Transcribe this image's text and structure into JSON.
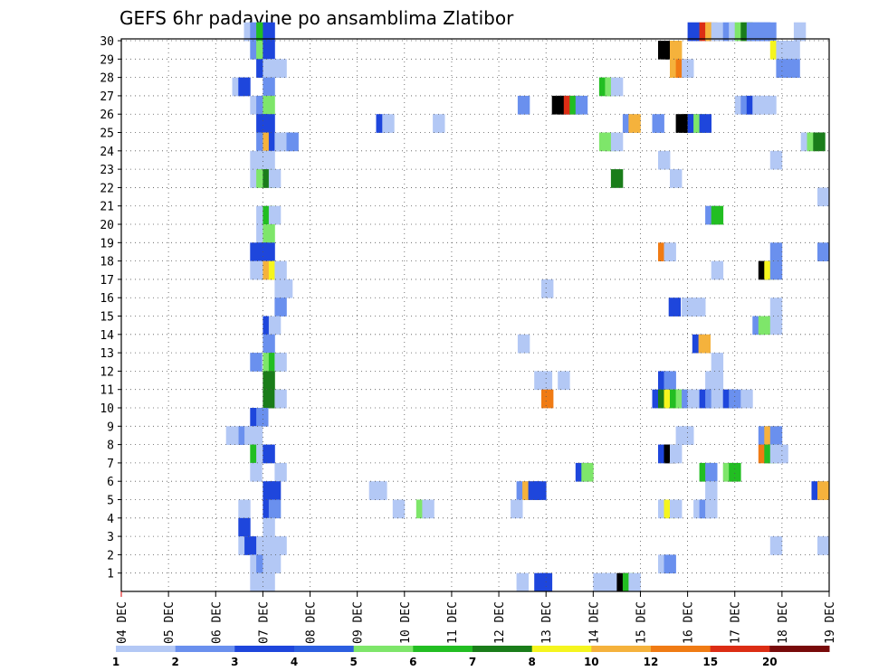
{
  "chart_data": {
    "type": "heatmap",
    "title": "GEFS 6hr padavine po ansamblima Zlatibor",
    "xlabel": "",
    "ylabel": "",
    "x_ticks": [
      "04 DEC",
      "05 DEC",
      "06 DEC",
      "07 DEC",
      "08 DEC",
      "09 DEC",
      "10 DEC",
      "11 DEC",
      "12 DEC",
      "13 DEC",
      "14 DEC",
      "15 DEC",
      "16 DEC",
      "17 DEC",
      "18 DEC",
      "19 DEC"
    ],
    "x_range_days": [
      4,
      19
    ],
    "y_ticks": [
      1,
      2,
      3,
      4,
      5,
      6,
      7,
      8,
      9,
      10,
      11,
      12,
      13,
      14,
      15,
      16,
      17,
      18,
      19,
      20,
      21,
      22,
      23,
      24,
      25,
      26,
      27,
      28,
      29,
      30
    ],
    "y_range": [
      0,
      30
    ],
    "grid": true,
    "colorbar": {
      "labels": [
        "1",
        "2",
        "3",
        "4",
        "5",
        "6",
        "7",
        "8",
        "10",
        "12",
        "15",
        "20"
      ],
      "colors": [
        "#b3c8f5",
        "#6a90ee",
        "#1e46dc",
        "#2c5ee0",
        "#7ee66a",
        "#22be22",
        "#1a7d1a",
        "#f5f51e",
        "#f5b23c",
        "#f07b14",
        "#dc2d14",
        "#780a0a"
      ]
    },
    "cells": [
      [
        30,
        6.6,
        1
      ],
      [
        30,
        6.73,
        2
      ],
      [
        30,
        6.86,
        6
      ],
      [
        30,
        7.0,
        3
      ],
      [
        30,
        16.0,
        3
      ],
      [
        30,
        16.25,
        11
      ],
      [
        30,
        16.375,
        9
      ],
      [
        30,
        16.5,
        1
      ],
      [
        30,
        16.75,
        2
      ],
      [
        30,
        16.875,
        1
      ],
      [
        30,
        17.0,
        5
      ],
      [
        30,
        17.125,
        7
      ],
      [
        30,
        17.25,
        2
      ],
      [
        30,
        17.375,
        2
      ],
      [
        30,
        17.5,
        2
      ],
      [
        30,
        17.625,
        2
      ],
      [
        30,
        18.25,
        1
      ],
      [
        29,
        6.73,
        2
      ],
      [
        29,
        6.86,
        5
      ],
      [
        29,
        7.0,
        3
      ],
      [
        29,
        15.375,
        14
      ],
      [
        29,
        15.5,
        15
      ],
      [
        29,
        15.625,
        9
      ],
      [
        29,
        17.75,
        8
      ],
      [
        29,
        17.875,
        1
      ],
      [
        29,
        18.0,
        1
      ],
      [
        29,
        18.125,
        1
      ],
      [
        28,
        6.86,
        3
      ],
      [
        28,
        7.0,
        1
      ],
      [
        28,
        7.125,
        1
      ],
      [
        28,
        7.25,
        1
      ],
      [
        28,
        15.625,
        9
      ],
      [
        28,
        15.75,
        10
      ],
      [
        28,
        15.875,
        1
      ],
      [
        28,
        17.875,
        2
      ],
      [
        28,
        18.0,
        2
      ],
      [
        28,
        18.125,
        2
      ],
      [
        27,
        6.35,
        1
      ],
      [
        27,
        6.48,
        3
      ],
      [
        27,
        7.0,
        2
      ],
      [
        27,
        14.125,
        6
      ],
      [
        27,
        14.25,
        5
      ],
      [
        27,
        14.375,
        1
      ],
      [
        26,
        6.73,
        1
      ],
      [
        26,
        6.86,
        2
      ],
      [
        26,
        7.0,
        5
      ],
      [
        26,
        12.4,
        2
      ],
      [
        26,
        13.125,
        14
      ],
      [
        26,
        13.25,
        13
      ],
      [
        26,
        13.375,
        11
      ],
      [
        26,
        13.5,
        6
      ],
      [
        26,
        13.625,
        2
      ],
      [
        26,
        17.0,
        1
      ],
      [
        26,
        17.125,
        2
      ],
      [
        26,
        17.25,
        3
      ],
      [
        26,
        17.375,
        1
      ],
      [
        26,
        17.5,
        1
      ],
      [
        26,
        17.625,
        1
      ],
      [
        25,
        6.86,
        3
      ],
      [
        25,
        7.0,
        3
      ],
      [
        25,
        9.4,
        3
      ],
      [
        25,
        9.53,
        1
      ],
      [
        25,
        10.6,
        1
      ],
      [
        25,
        14.625,
        2
      ],
      [
        25,
        14.75,
        9
      ],
      [
        25,
        15.25,
        2
      ],
      [
        25,
        15.75,
        13
      ],
      [
        25,
        15.875,
        14
      ],
      [
        25,
        16.0,
        3
      ],
      [
        25,
        16.125,
        5
      ],
      [
        25,
        16.25,
        3
      ],
      [
        24,
        6.86,
        2
      ],
      [
        24,
        7.0,
        9
      ],
      [
        24,
        7.125,
        3
      ],
      [
        24,
        7.25,
        1
      ],
      [
        24,
        7.375,
        1
      ],
      [
        24,
        7.5,
        2
      ],
      [
        24,
        14.125,
        5
      ],
      [
        24,
        14.25,
        5
      ],
      [
        24,
        14.375,
        1
      ],
      [
        24,
        18.4,
        1
      ],
      [
        24,
        18.53,
        5
      ],
      [
        24,
        18.66,
        7
      ],
      [
        23,
        6.73,
        1
      ],
      [
        23,
        6.86,
        1
      ],
      [
        23,
        7.0,
        1
      ],
      [
        23,
        15.375,
        1
      ],
      [
        23,
        17.75,
        1
      ],
      [
        22,
        6.73,
        1
      ],
      [
        22,
        6.86,
        5
      ],
      [
        22,
        7.0,
        7
      ],
      [
        22,
        7.125,
        1
      ],
      [
        22,
        14.375,
        7
      ],
      [
        22,
        15.625,
        1
      ],
      [
        21,
        18.75,
        1
      ],
      [
        20,
        6.86,
        1
      ],
      [
        20,
        7.0,
        6
      ],
      [
        20,
        7.125,
        1
      ],
      [
        20,
        16.375,
        2
      ],
      [
        20,
        16.5,
        6
      ],
      [
        19,
        6.86,
        1
      ],
      [
        19,
        7.0,
        5
      ],
      [
        18,
        6.73,
        3
      ],
      [
        18,
        6.86,
        3
      ],
      [
        18,
        7.0,
        3
      ],
      [
        18,
        15.375,
        10
      ],
      [
        18,
        15.5,
        1
      ],
      [
        18,
        17.75,
        2
      ],
      [
        18,
        18.75,
        2
      ],
      [
        17,
        6.73,
        1
      ],
      [
        17,
        6.86,
        1
      ],
      [
        17,
        7.0,
        9
      ],
      [
        17,
        7.125,
        8
      ],
      [
        17,
        7.25,
        1
      ],
      [
        17,
        16.5,
        1
      ],
      [
        17,
        17.5,
        14
      ],
      [
        17,
        17.625,
        8
      ],
      [
        17,
        17.75,
        2
      ],
      [
        16,
        7.25,
        1
      ],
      [
        16,
        7.375,
        1
      ],
      [
        16,
        12.9,
        1
      ],
      [
        15,
        7.25,
        2
      ],
      [
        15,
        15.6,
        3
      ],
      [
        15,
        15.875,
        1
      ],
      [
        15,
        16.0,
        1
      ],
      [
        15,
        16.125,
        1
      ],
      [
        15,
        17.75,
        1
      ],
      [
        14,
        7.0,
        3
      ],
      [
        14,
        7.125,
        1
      ],
      [
        14,
        17.375,
        2
      ],
      [
        14,
        17.5,
        5
      ],
      [
        14,
        17.75,
        1
      ],
      [
        13,
        7.0,
        2
      ],
      [
        13,
        12.4,
        1
      ],
      [
        13,
        16.1,
        3
      ],
      [
        13,
        16.23,
        9
      ],
      [
        12,
        6.73,
        2
      ],
      [
        12,
        7.0,
        5
      ],
      [
        12,
        7.125,
        6
      ],
      [
        12,
        7.25,
        1
      ],
      [
        12,
        16.5,
        1
      ],
      [
        11,
        7.0,
        7
      ],
      [
        11,
        12.75,
        1
      ],
      [
        11,
        12.875,
        1
      ],
      [
        11,
        13.25,
        1
      ],
      [
        11,
        15.375,
        3
      ],
      [
        11,
        15.5,
        2
      ],
      [
        11,
        16.375,
        1
      ],
      [
        11,
        16.5,
        1
      ],
      [
        10,
        7.0,
        7
      ],
      [
        10,
        7.125,
        7
      ],
      [
        10,
        7.25,
        1
      ],
      [
        10,
        12.9,
        10
      ],
      [
        10,
        15.25,
        3
      ],
      [
        10,
        15.375,
        7
      ],
      [
        10,
        15.5,
        8
      ],
      [
        10,
        15.625,
        6
      ],
      [
        10,
        15.75,
        5
      ],
      [
        10,
        15.875,
        2
      ],
      [
        10,
        16.0,
        1
      ],
      [
        10,
        16.125,
        1
      ],
      [
        10,
        16.25,
        3
      ],
      [
        10,
        16.375,
        2
      ],
      [
        10,
        16.5,
        1
      ],
      [
        10,
        16.625,
        1
      ],
      [
        10,
        16.75,
        3
      ],
      [
        10,
        16.875,
        2
      ],
      [
        10,
        17.125,
        1
      ],
      [
        9,
        6.73,
        3
      ],
      [
        9,
        6.86,
        2
      ],
      [
        8,
        6.22,
        1
      ],
      [
        8,
        6.48,
        2
      ],
      [
        8,
        6.61,
        1
      ],
      [
        8,
        6.74,
        1
      ],
      [
        8,
        15.75,
        1
      ],
      [
        8,
        15.875,
        1
      ],
      [
        8,
        17.5,
        2
      ],
      [
        8,
        17.625,
        9
      ],
      [
        8,
        17.75,
        2
      ],
      [
        7,
        6.73,
        6
      ],
      [
        7,
        6.86,
        1
      ],
      [
        7,
        7.0,
        3
      ],
      [
        7,
        15.375,
        3
      ],
      [
        7,
        15.5,
        13
      ],
      [
        7,
        15.625,
        1
      ],
      [
        7,
        17.5,
        10
      ],
      [
        7,
        17.625,
        6
      ],
      [
        7,
        17.75,
        1
      ],
      [
        7,
        17.875,
        1
      ],
      [
        6,
        6.73,
        1
      ],
      [
        6,
        7.25,
        1
      ],
      [
        6,
        13.625,
        3
      ],
      [
        6,
        13.75,
        5
      ],
      [
        6,
        16.25,
        6
      ],
      [
        6,
        16.375,
        2
      ],
      [
        6,
        16.75,
        5
      ],
      [
        6,
        16.875,
        6
      ],
      [
        5,
        7.0,
        3
      ],
      [
        5,
        7.125,
        3
      ],
      [
        5,
        9.25,
        1
      ],
      [
        5,
        9.375,
        1
      ],
      [
        5,
        12.375,
        2
      ],
      [
        5,
        12.5,
        9
      ],
      [
        5,
        12.625,
        3
      ],
      [
        5,
        12.75,
        3
      ],
      [
        5,
        16.375,
        1
      ],
      [
        5,
        18.625,
        3
      ],
      [
        5,
        18.75,
        9
      ],
      [
        4,
        6.48,
        1
      ],
      [
        4,
        7.0,
        3
      ],
      [
        4,
        7.125,
        2
      ],
      [
        4,
        9.75,
        1
      ],
      [
        4,
        10.25,
        5
      ],
      [
        4,
        10.375,
        1
      ],
      [
        4,
        12.25,
        1
      ],
      [
        4,
        15.375,
        1
      ],
      [
        4,
        15.5,
        8
      ],
      [
        4,
        15.625,
        1
      ],
      [
        4,
        16.125,
        1
      ],
      [
        4,
        16.25,
        2
      ],
      [
        4,
        16.375,
        1
      ],
      [
        3,
        6.48,
        3
      ],
      [
        3,
        7.0,
        1
      ],
      [
        2,
        6.48,
        1
      ],
      [
        2,
        6.61,
        3
      ],
      [
        2,
        6.86,
        1
      ],
      [
        2,
        7.0,
        1
      ],
      [
        2,
        7.25,
        1
      ],
      [
        2,
        17.75,
        1
      ],
      [
        2,
        18.75,
        1
      ],
      [
        1,
        6.73,
        1
      ],
      [
        1,
        6.86,
        2
      ],
      [
        1,
        7.0,
        1
      ],
      [
        1,
        7.125,
        1
      ],
      [
        1,
        15.375,
        1
      ],
      [
        1,
        15.5,
        2
      ],
      [
        0,
        6.73,
        1
      ],
      [
        0,
        6.86,
        1
      ],
      [
        0,
        7.0,
        1
      ],
      [
        0,
        12.375,
        1
      ],
      [
        0,
        12.75,
        3
      ],
      [
        0,
        12.875,
        3
      ],
      [
        0,
        14.0,
        1
      ],
      [
        0,
        14.125,
        1
      ],
      [
        0,
        14.25,
        1
      ],
      [
        0,
        14.5,
        15
      ],
      [
        0,
        14.625,
        6
      ],
      [
        0,
        14.75,
        1
      ]
    ]
  }
}
